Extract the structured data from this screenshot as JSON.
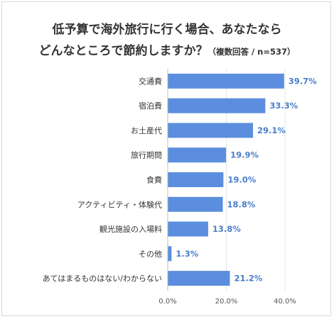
{
  "chart_data": {
    "type": "bar",
    "orientation": "horizontal",
    "title_line1": "低予算で海外旅行に行く場合、あなたなら",
    "title_line2": "どんなところで節約しますか？",
    "note": "（複数回答 / n=537）",
    "categories": [
      "交通費",
      "宿泊費",
      "お土産代",
      "旅行期間",
      "食費",
      "アクティビティ・体験代",
      "観光施設の入場料",
      "その他",
      "あてはまるものはない/わからない"
    ],
    "values": [
      39.7,
      33.3,
      29.1,
      19.9,
      19.0,
      18.8,
      13.8,
      1.3,
      21.2
    ],
    "value_labels": [
      "39.7%",
      "33.3%",
      "29.1%",
      "19.9%",
      "19.0%",
      "18.8%",
      "13.8%",
      "1.3%",
      "21.2%"
    ],
    "xlim": [
      0,
      40
    ],
    "xticks": [
      0,
      20,
      40
    ],
    "xtick_labels": [
      "0.0%",
      "20.0%",
      "40.0%"
    ],
    "grid": true,
    "colors": {
      "bar": "#5b8ede",
      "label": "#4a7fcc",
      "axis": "#bfbfbf"
    }
  }
}
